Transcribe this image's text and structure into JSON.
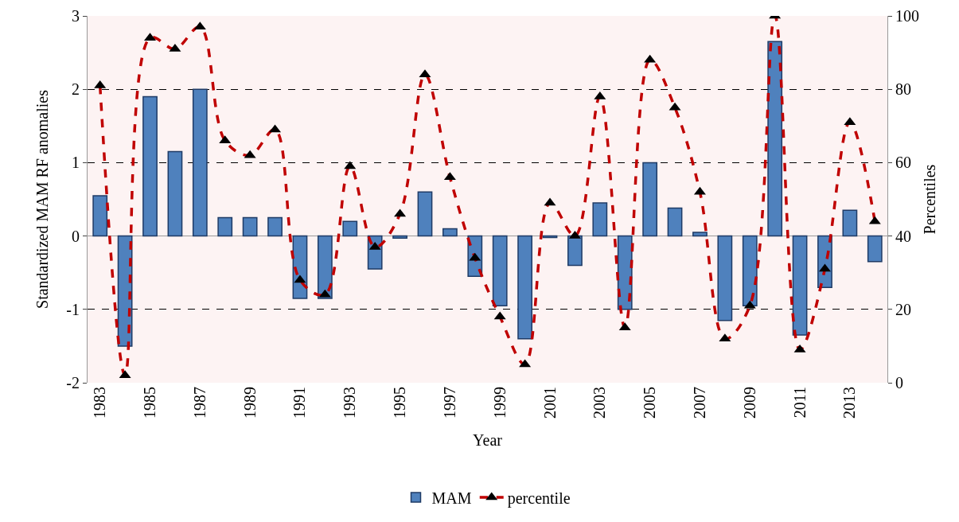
{
  "chart_data": {
    "type": "bar",
    "xlabel": "Year",
    "ylabel": "Standardized MAM RF anomalies",
    "y2label": "Percentiles",
    "categories": [
      "1983",
      null,
      "1985",
      null,
      "1987",
      null,
      "1989",
      null,
      "1991",
      null,
      "1993",
      null,
      "1995",
      null,
      "1997",
      null,
      "1999",
      null,
      "2001",
      null,
      "2003",
      null,
      "2005",
      null,
      "2007",
      null,
      "2009",
      null,
      "2011",
      null,
      "2013",
      null
    ],
    "series": [
      {
        "name": "MAM",
        "color": "#4f81bd",
        "values": [
          0.55,
          -1.5,
          1.9,
          1.15,
          2.0,
          0.25,
          0.25,
          0.25,
          -0.85,
          -0.85,
          0.2,
          -0.45,
          -0.03,
          0.6,
          0.1,
          -0.55,
          -0.95,
          -1.4,
          -0.02,
          -0.4,
          0.45,
          -1.0,
          1.0,
          0.38,
          0.05,
          -1.15,
          -0.95,
          2.65,
          -1.35,
          -0.7,
          0.35,
          -0.35
        ]
      },
      {
        "name": "percentile",
        "type": "line",
        "axis": "y2",
        "color": "#c00000",
        "marker": "triangle",
        "line_style": "dashed",
        "values": [
          81,
          2,
          94,
          91,
          97,
          66,
          62,
          69,
          28,
          24,
          59,
          37,
          46,
          84,
          56,
          34,
          18,
          5,
          49,
          40,
          78,
          15,
          88,
          75,
          52,
          12,
          21,
          100,
          9,
          31,
          71,
          44
        ]
      }
    ],
    "ylim": [
      -2,
      3
    ],
    "yticks": [
      -2,
      -1,
      0,
      1,
      2,
      3
    ],
    "y2lim": [
      0,
      100
    ],
    "y2ticks": [
      0,
      20,
      40,
      60,
      80,
      100
    ],
    "grid": "y",
    "legend": "bottom"
  }
}
